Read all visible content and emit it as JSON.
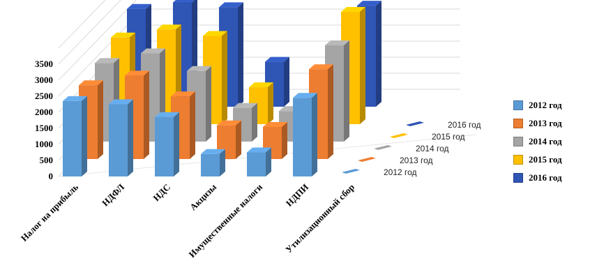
{
  "chart_data": {
    "type": "bar",
    "categories": [
      "Налог на прибыль",
      "НДФЛ",
      "НДС",
      "Акцизы",
      "Имущественные налоги",
      "НДПИ",
      "Утилизационный сбор"
    ],
    "series": [
      {
        "name": "2012 год",
        "color": "#5b9bd5",
        "values": [
          2350,
          2250,
          1850,
          700,
          750,
          2450,
          0
        ]
      },
      {
        "name": "2013 год",
        "color": "#ed7d31",
        "values": [
          2300,
          2600,
          1950,
          1050,
          1000,
          2800,
          0
        ]
      },
      {
        "name": "2014 год",
        "color": "#a5a5a5",
        "values": [
          2450,
          2750,
          2200,
          1050,
          950,
          3000,
          0
        ]
      },
      {
        "name": "2015 год",
        "color": "#ffc000",
        "values": [
          2700,
          2950,
          2750,
          1150,
          0,
          3500,
          0
        ]
      },
      {
        "name": "2016 год",
        "color": "#2f55b5",
        "values": [
          3050,
          3250,
          3100,
          1400,
          0,
          3150,
          0
        ]
      }
    ],
    "y_ticks": [
      "0",
      "500",
      "1000",
      "1500",
      "2000",
      "2500",
      "3000",
      "3500"
    ],
    "ylim": [
      0,
      3500
    ],
    "depth_labels": [
      "2012 год",
      "2013 год",
      "2014 год",
      "2015 год",
      "2016 год"
    ],
    "legend_position": "right",
    "grid": true
  }
}
